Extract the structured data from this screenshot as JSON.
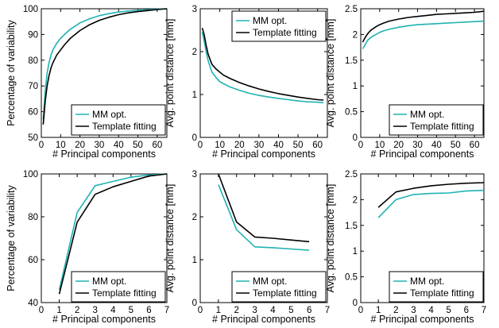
{
  "colors": {
    "mm": "#20b2b2",
    "template": "#000000"
  },
  "chart_data": [
    {
      "type": "line",
      "xlabel": "# Principal components",
      "ylabel": "Percentage of variability",
      "xlim": [
        0,
        65
      ],
      "ylim": [
        50,
        100
      ],
      "xticks": [
        "0",
        "10",
        "20",
        "30",
        "40",
        "50",
        "60"
      ],
      "yticks": [
        "50",
        "60",
        "70",
        "80",
        "90",
        "100"
      ],
      "legend": "bottom-right",
      "series": [
        {
          "name": "MM opt.",
          "color_key": "mm",
          "x": [
            1,
            2,
            3,
            4,
            5,
            6,
            8,
            10,
            12,
            15,
            20,
            25,
            30,
            35,
            40,
            45,
            50,
            55,
            60,
            65
          ],
          "y": [
            57,
            68,
            75,
            79,
            82,
            84,
            86.6,
            88.5,
            90,
            92,
            94.5,
            96.1,
            97.3,
            98.1,
            98.7,
            99.1,
            99.4,
            99.6,
            99.85,
            100
          ]
        },
        {
          "name": "Template fitting",
          "color_key": "template",
          "x": [
            1,
            2,
            3,
            4,
            5,
            6,
            8,
            10,
            12,
            15,
            20,
            25,
            30,
            35,
            40,
            45,
            50,
            55,
            60,
            65
          ],
          "y": [
            55,
            64,
            70,
            74,
            77,
            79,
            82,
            84,
            86,
            88.5,
            91.5,
            93.8,
            95.5,
            96.7,
            97.7,
            98.4,
            98.9,
            99.3,
            99.7,
            100
          ]
        }
      ]
    },
    {
      "type": "line",
      "xlabel": "# Principal components",
      "ylabel": "Avg. point distance [mm]",
      "xlim": [
        0,
        65
      ],
      "ylim": [
        0,
        3
      ],
      "xticks": [
        "0",
        "10",
        "20",
        "30",
        "40",
        "50",
        "60"
      ],
      "yticks": [
        "0",
        "1",
        "2",
        "3"
      ],
      "legend": "top-right",
      "series": [
        {
          "name": "MM opt.",
          "color_key": "mm",
          "x": [
            1,
            2,
            3,
            4,
            5,
            6,
            8,
            10,
            12,
            15,
            20,
            25,
            30,
            35,
            40,
            45,
            50,
            55,
            60,
            63
          ],
          "y": [
            2.45,
            2.25,
            2.0,
            1.8,
            1.65,
            1.52,
            1.4,
            1.3,
            1.25,
            1.18,
            1.1,
            1.03,
            0.98,
            0.94,
            0.91,
            0.88,
            0.85,
            0.83,
            0.82,
            0.81
          ]
        },
        {
          "name": "Template fitting",
          "color_key": "template",
          "x": [
            1,
            2,
            3,
            4,
            5,
            6,
            8,
            10,
            12,
            15,
            20,
            25,
            30,
            35,
            40,
            45,
            50,
            55,
            60,
            63
          ],
          "y": [
            2.55,
            2.4,
            2.15,
            1.95,
            1.82,
            1.7,
            1.6,
            1.52,
            1.45,
            1.38,
            1.28,
            1.2,
            1.13,
            1.07,
            1.02,
            0.98,
            0.94,
            0.91,
            0.88,
            0.87
          ]
        }
      ]
    },
    {
      "type": "line",
      "xlabel": "# Principal components",
      "ylabel": "Avg. point distance [mm]",
      "xlim": [
        0,
        65
      ],
      "ylim": [
        0,
        2.5
      ],
      "xticks": [
        "0",
        "10",
        "20",
        "30",
        "40",
        "50",
        "60"
      ],
      "yticks": [
        "0",
        "0.5",
        "1",
        "1.5",
        "2",
        "2.5"
      ],
      "legend": "bottom-right",
      "series": [
        {
          "name": "MM opt.",
          "color_key": "mm",
          "x": [
            1,
            2,
            3,
            4,
            5,
            6,
            8,
            10,
            12,
            15,
            20,
            25,
            30,
            35,
            40,
            45,
            50,
            55,
            60,
            65
          ],
          "y": [
            1.72,
            1.78,
            1.85,
            1.9,
            1.93,
            1.96,
            2.0,
            2.04,
            2.07,
            2.1,
            2.14,
            2.17,
            2.19,
            2.2,
            2.21,
            2.22,
            2.23,
            2.24,
            2.25,
            2.26
          ]
        },
        {
          "name": "Template fitting",
          "color_key": "template",
          "x": [
            1,
            2,
            3,
            4,
            5,
            6,
            8,
            10,
            12,
            15,
            20,
            25,
            30,
            35,
            40,
            45,
            50,
            55,
            60,
            65
          ],
          "y": [
            1.85,
            1.92,
            1.98,
            2.03,
            2.07,
            2.1,
            2.15,
            2.19,
            2.22,
            2.26,
            2.3,
            2.33,
            2.35,
            2.37,
            2.39,
            2.4,
            2.41,
            2.42,
            2.43,
            2.45
          ]
        }
      ]
    },
    {
      "type": "line",
      "xlabel": "# Principal components",
      "ylabel": "Percentage of variability",
      "xlim": [
        0,
        7
      ],
      "ylim": [
        40,
        100
      ],
      "xticks": [
        "0",
        "1",
        "2",
        "3",
        "4",
        "5",
        "6",
        "7"
      ],
      "yticks": [
        "40",
        "60",
        "80",
        "100"
      ],
      "legend": "bottom-right",
      "series": [
        {
          "name": "MM opt.",
          "color_key": "mm",
          "x": [
            1,
            2,
            3,
            4,
            5,
            6,
            7
          ],
          "y": [
            46,
            82,
            94.5,
            96.5,
            98.5,
            99.5,
            100
          ]
        },
        {
          "name": "Template fitting",
          "color_key": "template",
          "x": [
            1,
            2,
            3,
            4,
            5,
            6,
            7
          ],
          "y": [
            44,
            77.5,
            90.5,
            94,
            96.5,
            99,
            100
          ]
        }
      ]
    },
    {
      "type": "line",
      "xlabel": "# Principal components",
      "ylabel": "Avg. point distance [mm]",
      "xlim": [
        0,
        7
      ],
      "ylim": [
        0,
        3
      ],
      "xticks": [
        "0",
        "1",
        "2",
        "3",
        "4",
        "5",
        "6",
        "7"
      ],
      "yticks": [
        "0",
        "1",
        "2",
        "3"
      ],
      "legend": "bottom-right",
      "series": [
        {
          "name": "MM opt.",
          "color_key": "mm",
          "x": [
            1,
            2,
            3,
            4,
            5,
            6
          ],
          "y": [
            2.75,
            1.7,
            1.3,
            1.28,
            1.25,
            1.22
          ]
        },
        {
          "name": "Template fitting",
          "color_key": "template",
          "x": [
            1,
            2,
            3,
            4,
            5,
            6
          ],
          "y": [
            3.0,
            1.88,
            1.53,
            1.5,
            1.46,
            1.42
          ]
        }
      ]
    },
    {
      "type": "line",
      "xlabel": "# Principal components",
      "ylabel": "Avg. point distance [mm]",
      "xlim": [
        0,
        7
      ],
      "ylim": [
        0,
        2.5
      ],
      "xticks": [
        "0",
        "1",
        "2",
        "3",
        "4",
        "5",
        "6",
        "7"
      ],
      "yticks": [
        "0",
        "0.5",
        "1",
        "1.5",
        "2",
        "2.5"
      ],
      "legend": "bottom-right",
      "series": [
        {
          "name": "MM opt.",
          "color_key": "mm",
          "x": [
            1,
            2,
            3,
            4,
            5,
            6,
            7
          ],
          "y": [
            1.65,
            2.0,
            2.1,
            2.12,
            2.13,
            2.17,
            2.18
          ]
        },
        {
          "name": "Template fitting",
          "color_key": "template",
          "x": [
            1,
            2,
            3,
            4,
            5,
            6,
            7
          ],
          "y": [
            1.85,
            2.15,
            2.22,
            2.27,
            2.3,
            2.32,
            2.33
          ]
        }
      ]
    }
  ]
}
